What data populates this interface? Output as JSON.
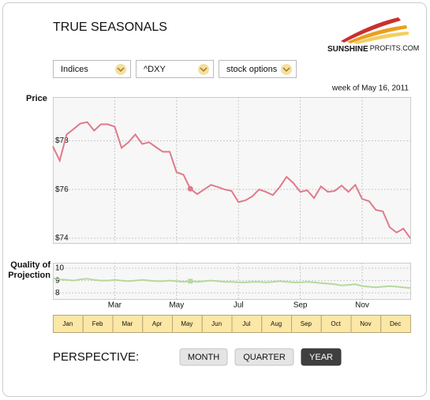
{
  "header": {
    "title": "TRUE SEASONALS",
    "logo_bold": "SUNSHINE",
    "logo_rest": "PROFITS.COM"
  },
  "controls": {
    "selects": [
      "Indices",
      "^DXY",
      "stock options"
    ],
    "date": "week of May 16, 2011"
  },
  "chart_data": [
    {
      "type": "line",
      "ylabel": "Price",
      "color": "#e07a8a",
      "highlight": 20,
      "grid": true,
      "ylim": [
        73.8,
        79.8
      ],
      "yticks": [
        {
          "value": 74,
          "label": "$74"
        },
        {
          "value": 76,
          "label": "$76"
        },
        {
          "value": 78,
          "label": "$78"
        }
      ],
      "values": [
        77.77,
        77.19,
        78.26,
        78.48,
        78.71,
        78.77,
        78.42,
        78.68,
        78.68,
        78.58,
        77.71,
        77.94,
        78.26,
        77.87,
        77.94,
        77.74,
        77.55,
        77.55,
        76.71,
        76.61,
        76.03,
        75.81,
        76.0,
        76.19,
        76.1,
        76.0,
        75.94,
        75.48,
        75.55,
        75.71,
        76.0,
        75.9,
        75.77,
        76.1,
        76.52,
        76.26,
        75.9,
        75.97,
        75.65,
        76.13,
        75.9,
        75.94,
        76.16,
        75.9,
        76.19,
        75.61,
        75.52,
        75.16,
        75.1,
        74.45,
        74.23,
        74.39,
        74.0
      ]
    },
    {
      "type": "line",
      "ylabel": "Quality of Projection",
      "color": "#b5d99c",
      "highlight": 20,
      "grid": true,
      "ylim": [
        7.5,
        10.45
      ],
      "yticks": [
        8,
        9,
        10
      ],
      "categories": [
        null,
        null,
        null,
        null,
        null,
        null,
        null,
        null,
        null,
        "Mar",
        null,
        null,
        null,
        null,
        null,
        null,
        null,
        null,
        "May",
        null,
        null,
        null,
        null,
        null,
        null,
        null,
        null,
        "Jul",
        null,
        null,
        null,
        null,
        null,
        null,
        null,
        null,
        "Sep",
        null,
        null,
        null,
        null,
        null,
        null,
        null,
        null,
        "Nov",
        null,
        null,
        null,
        null,
        null,
        null,
        null
      ],
      "values": [
        9.2,
        9.1,
        9.05,
        9.0,
        9.1,
        9.15,
        9.05,
        9.0,
        9.0,
        9.05,
        9.0,
        8.95,
        9.0,
        9.05,
        9.0,
        8.95,
        8.95,
        9.0,
        8.95,
        8.9,
        8.95,
        8.9,
        8.95,
        9.0,
        8.95,
        8.9,
        8.9,
        8.85,
        8.85,
        8.9,
        8.9,
        8.85,
        8.9,
        8.95,
        8.9,
        8.85,
        8.85,
        8.9,
        8.85,
        8.8,
        8.75,
        8.7,
        8.6,
        8.65,
        8.7,
        8.55,
        8.5,
        8.45,
        8.5,
        8.55,
        8.5,
        8.45,
        8.4
      ]
    }
  ],
  "months": [
    "Jan",
    "Feb",
    "Mar",
    "Apr",
    "May",
    "Jun",
    "Jul",
    "Aug",
    "Sep",
    "Oct",
    "Nov",
    "Dec"
  ],
  "perspective": {
    "label": "PERSPECTIVE:",
    "buttons": [
      "MONTH",
      "QUARTER",
      "YEAR"
    ],
    "active": 2
  }
}
